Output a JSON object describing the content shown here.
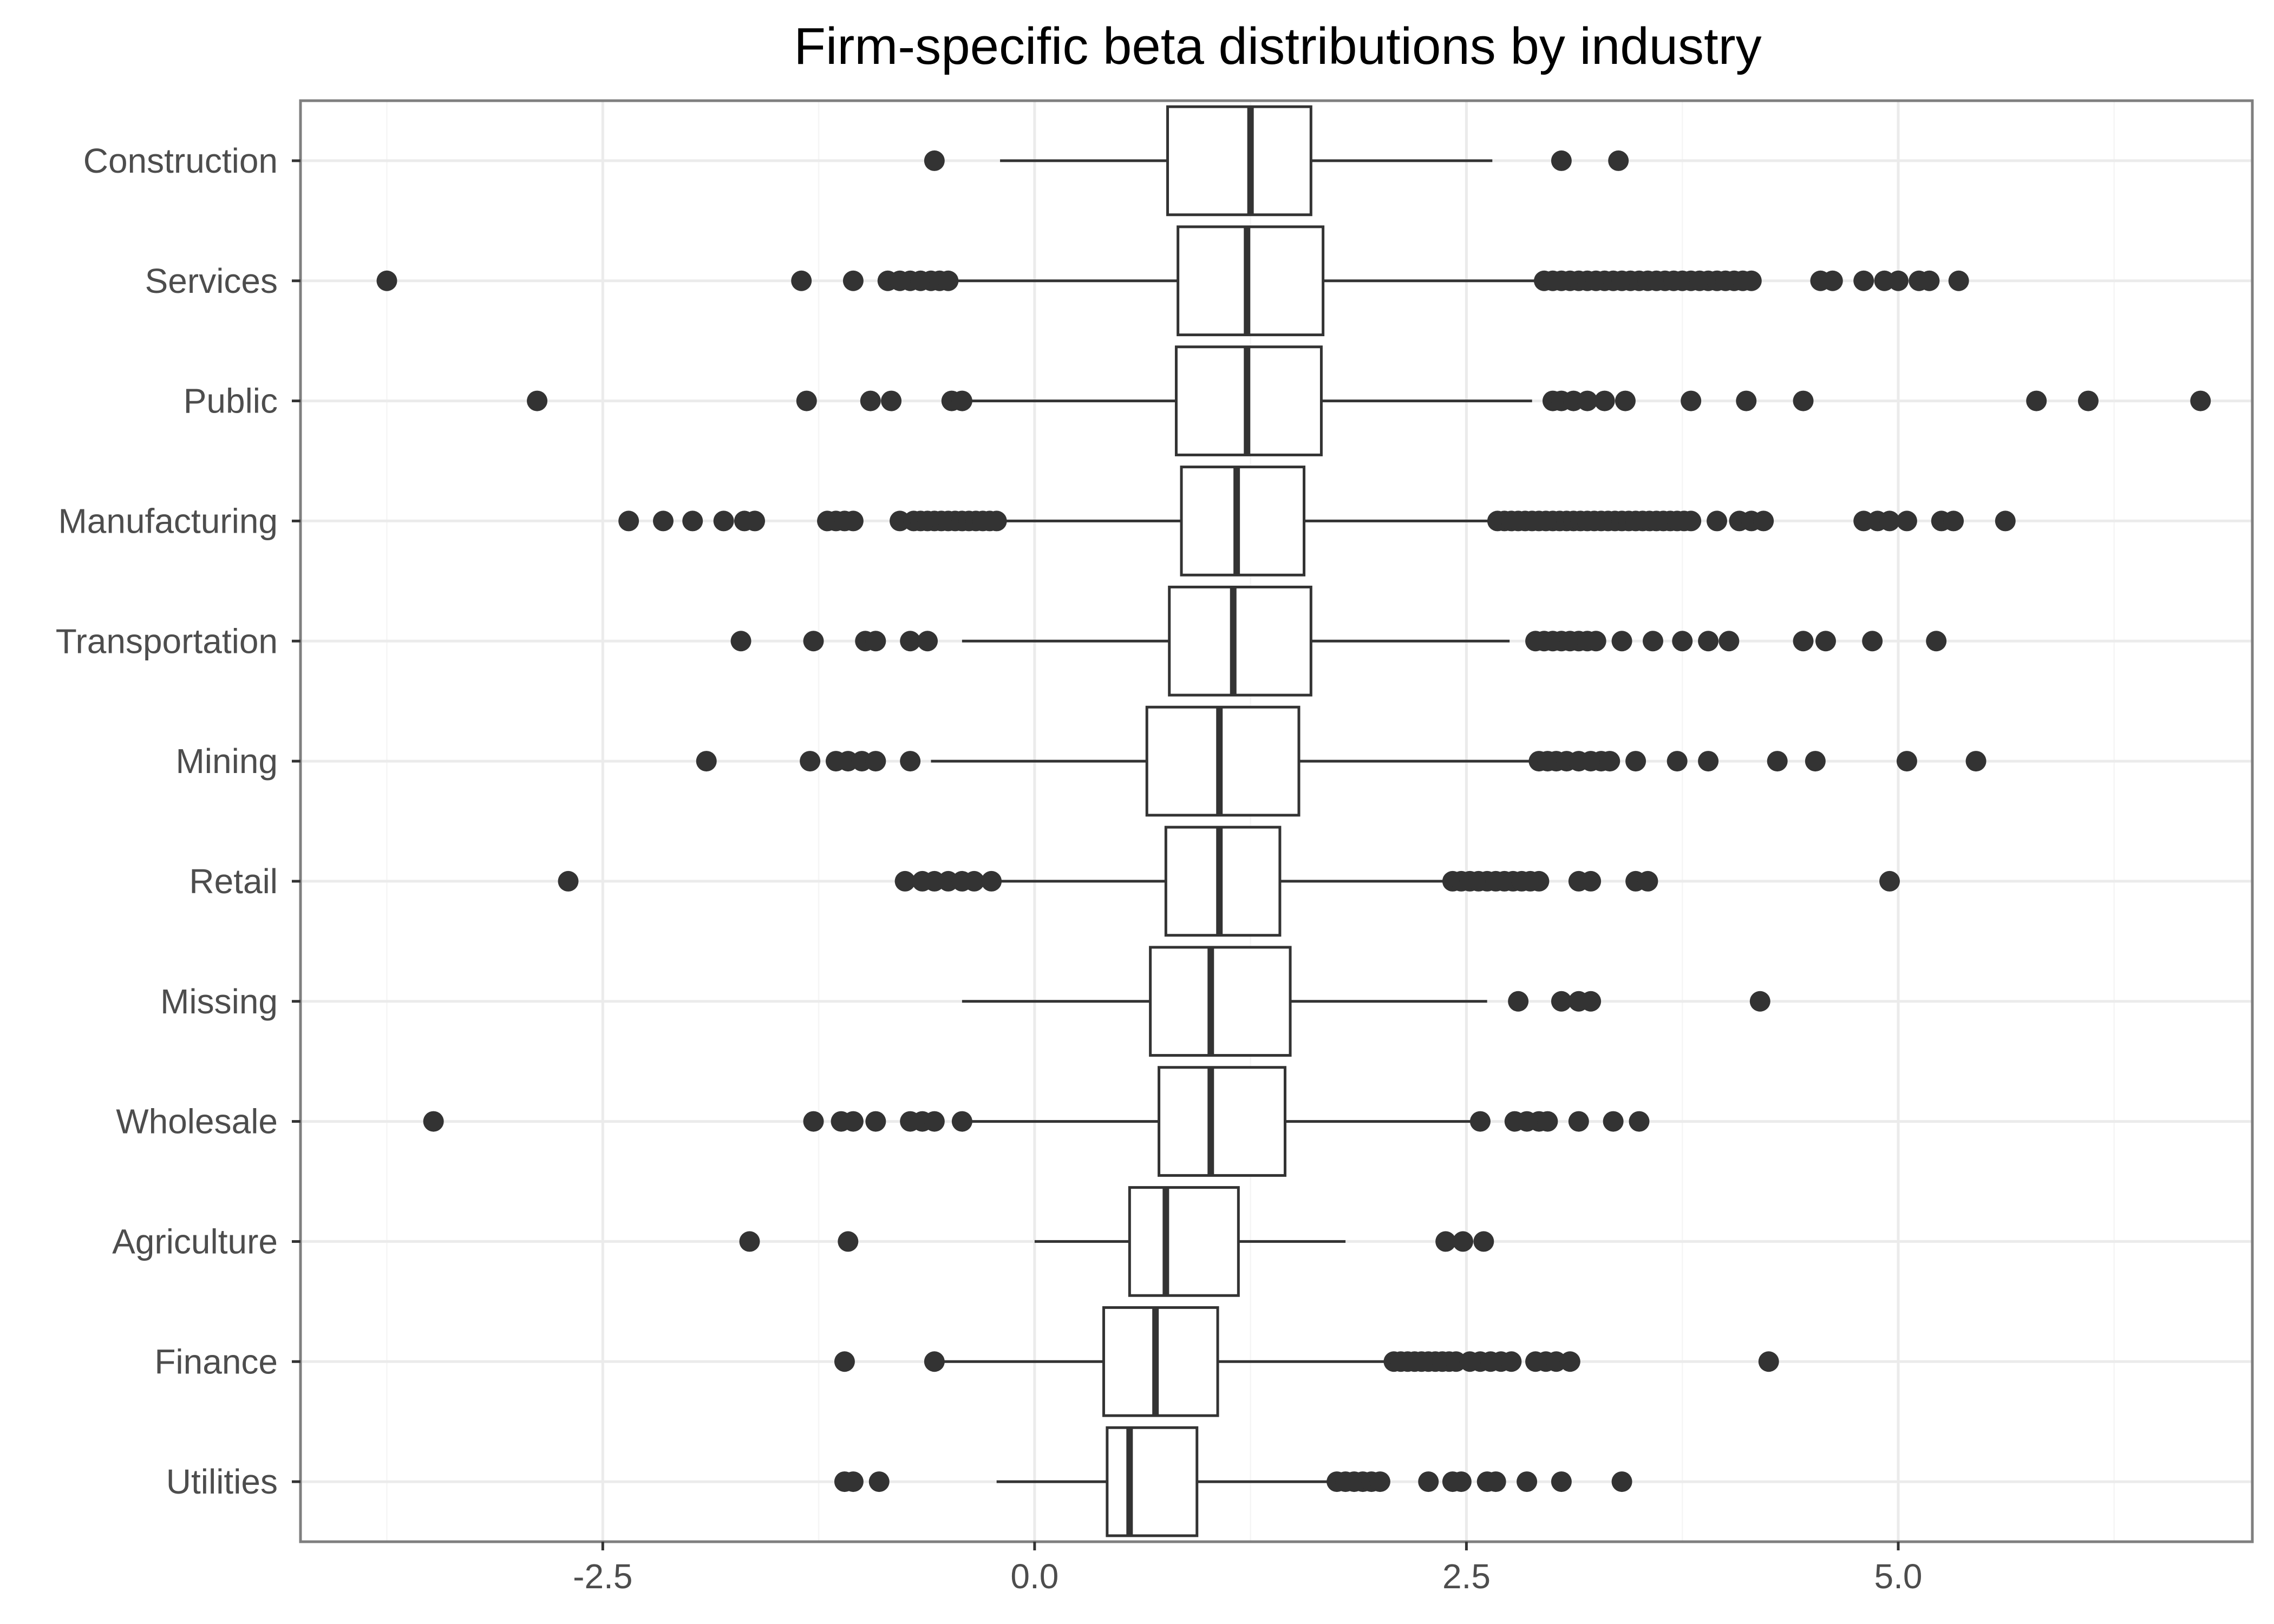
{
  "chart_data": {
    "type": "boxplot",
    "title": "Firm-specific beta distributions by industry",
    "xlabel": "",
    "ylabel": "",
    "xlim": [
      -4.25,
      7.05
    ],
    "xticks": [
      -2.5,
      0.0,
      2.5,
      5.0
    ],
    "xtick_labels": [
      "-2.5",
      "0.0",
      "2.5",
      "5.0"
    ],
    "grid": true,
    "legend": "none",
    "colors": {
      "box_fill": "#ffffff",
      "box_line": "#333333",
      "outlier": "#333333",
      "grid_major": "#ebebeb",
      "grid_minor": "#f5f5f5",
      "panel_border": "#7f7f7f",
      "tick_label": "#4d4d4d"
    },
    "categories": [
      "Construction",
      "Services",
      "Public",
      "Manufacturing",
      "Transportation",
      "Mining",
      "Retail",
      "Missing",
      "Wholesale",
      "Agriculture",
      "Finance",
      "Utilities"
    ],
    "boxes": [
      {
        "name": "Construction",
        "whisker_low": -0.2,
        "q1": 0.77,
        "median": 1.25,
        "q3": 1.6,
        "whisker_high": 2.65,
        "outliers": [
          -0.58,
          3.05,
          3.38
        ]
      },
      {
        "name": "Services",
        "whisker_low": -0.45,
        "q1": 0.83,
        "median": 1.23,
        "q3": 1.67,
        "whisker_high": 2.9,
        "outliers": [
          -3.75,
          -1.35,
          -1.05,
          -0.85,
          -0.78,
          -0.72,
          -0.66,
          -0.6,
          -0.55,
          -0.5,
          2.95,
          3.0,
          3.05,
          3.1,
          3.15,
          3.2,
          3.25,
          3.3,
          3.35,
          3.4,
          3.45,
          3.5,
          3.55,
          3.6,
          3.65,
          3.7,
          3.75,
          3.8,
          3.85,
          3.9,
          3.95,
          4.0,
          4.05,
          4.1,
          4.15,
          4.55,
          4.62,
          4.8,
          4.92,
          5.0,
          5.12,
          5.18,
          5.35
        ]
      },
      {
        "name": "Public",
        "whisker_low": -0.38,
        "q1": 0.82,
        "median": 1.23,
        "q3": 1.66,
        "whisker_high": 2.88,
        "outliers": [
          -2.88,
          -1.32,
          -0.95,
          -0.83,
          -0.48,
          -0.42,
          3.0,
          3.05,
          3.12,
          3.2,
          3.3,
          3.42,
          3.8,
          4.12,
          4.45,
          5.8,
          6.1,
          6.75
        ]
      },
      {
        "name": "Manufacturing",
        "whisker_low": -0.18,
        "q1": 0.85,
        "median": 1.17,
        "q3": 1.56,
        "whisker_high": 2.65,
        "outliers": [
          -2.35,
          -2.15,
          -1.98,
          -1.8,
          -1.68,
          -1.62,
          -1.2,
          -1.15,
          -1.1,
          -1.05,
          -0.78,
          -0.7,
          -0.66,
          -0.62,
          -0.58,
          -0.54,
          -0.5,
          -0.46,
          -0.42,
          -0.38,
          -0.34,
          -0.3,
          -0.26,
          -0.22,
          2.68,
          2.72,
          2.76,
          2.8,
          2.84,
          2.88,
          2.92,
          2.96,
          3.0,
          3.04,
          3.08,
          3.12,
          3.16,
          3.2,
          3.24,
          3.28,
          3.32,
          3.36,
          3.4,
          3.44,
          3.48,
          3.52,
          3.56,
          3.6,
          3.64,
          3.68,
          3.72,
          3.76,
          3.8,
          3.95,
          4.08,
          4.15,
          4.22,
          4.8,
          4.88,
          4.95,
          5.05,
          5.25,
          5.32,
          5.62
        ]
      },
      {
        "name": "Transportation",
        "whisker_low": -0.42,
        "q1": 0.78,
        "median": 1.15,
        "q3": 1.6,
        "whisker_high": 2.75,
        "outliers": [
          -1.7,
          -1.28,
          -0.98,
          -0.92,
          -0.72,
          -0.62,
          2.9,
          2.95,
          3.0,
          3.05,
          3.1,
          3.15,
          3.2,
          3.25,
          3.4,
          3.58,
          3.75,
          3.9,
          4.02,
          4.45,
          4.58,
          4.85,
          5.22
        ]
      },
      {
        "name": "Mining",
        "whisker_low": -0.6,
        "q1": 0.65,
        "median": 1.07,
        "q3": 1.53,
        "whisker_high": 2.9,
        "outliers": [
          -1.9,
          -1.3,
          -1.15,
          -1.08,
          -1.0,
          -0.92,
          -0.72,
          2.92,
          2.97,
          3.02,
          3.08,
          3.15,
          3.22,
          3.28,
          3.33,
          3.48,
          3.72,
          3.9,
          4.3,
          4.52,
          5.05,
          5.45
        ]
      },
      {
        "name": "Retail",
        "whisker_low": -0.25,
        "q1": 0.76,
        "median": 1.07,
        "q3": 1.42,
        "whisker_high": 2.4,
        "outliers": [
          -2.7,
          -0.75,
          -0.65,
          -0.58,
          -0.5,
          -0.42,
          -0.35,
          -0.25,
          2.42,
          2.47,
          2.52,
          2.57,
          2.62,
          2.67,
          2.72,
          2.77,
          2.82,
          2.87,
          2.92,
          3.15,
          3.22,
          3.48,
          3.55,
          4.95
        ]
      },
      {
        "name": "Missing",
        "whisker_low": -0.42,
        "q1": 0.67,
        "median": 1.02,
        "q3": 1.48,
        "whisker_high": 2.62,
        "outliers": [
          2.8,
          3.05,
          3.15,
          3.22,
          4.2
        ]
      },
      {
        "name": "Wholesale",
        "whisker_low": -0.38,
        "q1": 0.72,
        "median": 1.02,
        "q3": 1.45,
        "whisker_high": 2.58,
        "outliers": [
          -3.48,
          -1.28,
          -1.12,
          -1.05,
          -0.92,
          -0.72,
          -0.65,
          -0.58,
          -0.42,
          2.58,
          2.78,
          2.85,
          2.92,
          2.97,
          3.15,
          3.35,
          3.5
        ]
      },
      {
        "name": "Agriculture",
        "whisker_low": 0.0,
        "q1": 0.55,
        "median": 0.76,
        "q3": 1.18,
        "whisker_high": 1.8,
        "outliers": [
          -1.65,
          -1.08,
          2.38,
          2.48,
          2.6
        ]
      },
      {
        "name": "Finance",
        "whisker_low": -0.55,
        "q1": 0.4,
        "median": 0.7,
        "q3": 1.06,
        "whisker_high": 2.05,
        "outliers": [
          -1.1,
          -0.58,
          2.08,
          2.12,
          2.16,
          2.2,
          2.24,
          2.28,
          2.32,
          2.36,
          2.4,
          2.44,
          2.52,
          2.58,
          2.64,
          2.7,
          2.76,
          2.9,
          2.96,
          3.02,
          3.1,
          4.25
        ]
      },
      {
        "name": "Utilities",
        "whisker_low": -0.22,
        "q1": 0.42,
        "median": 0.55,
        "q3": 0.94,
        "whisker_high": 1.72,
        "outliers": [
          -1.1,
          -1.05,
          -0.9,
          1.75,
          1.8,
          1.85,
          1.9,
          1.95,
          2.0,
          2.28,
          2.42,
          2.47,
          2.62,
          2.67,
          2.85,
          3.05,
          3.4
        ]
      }
    ]
  }
}
